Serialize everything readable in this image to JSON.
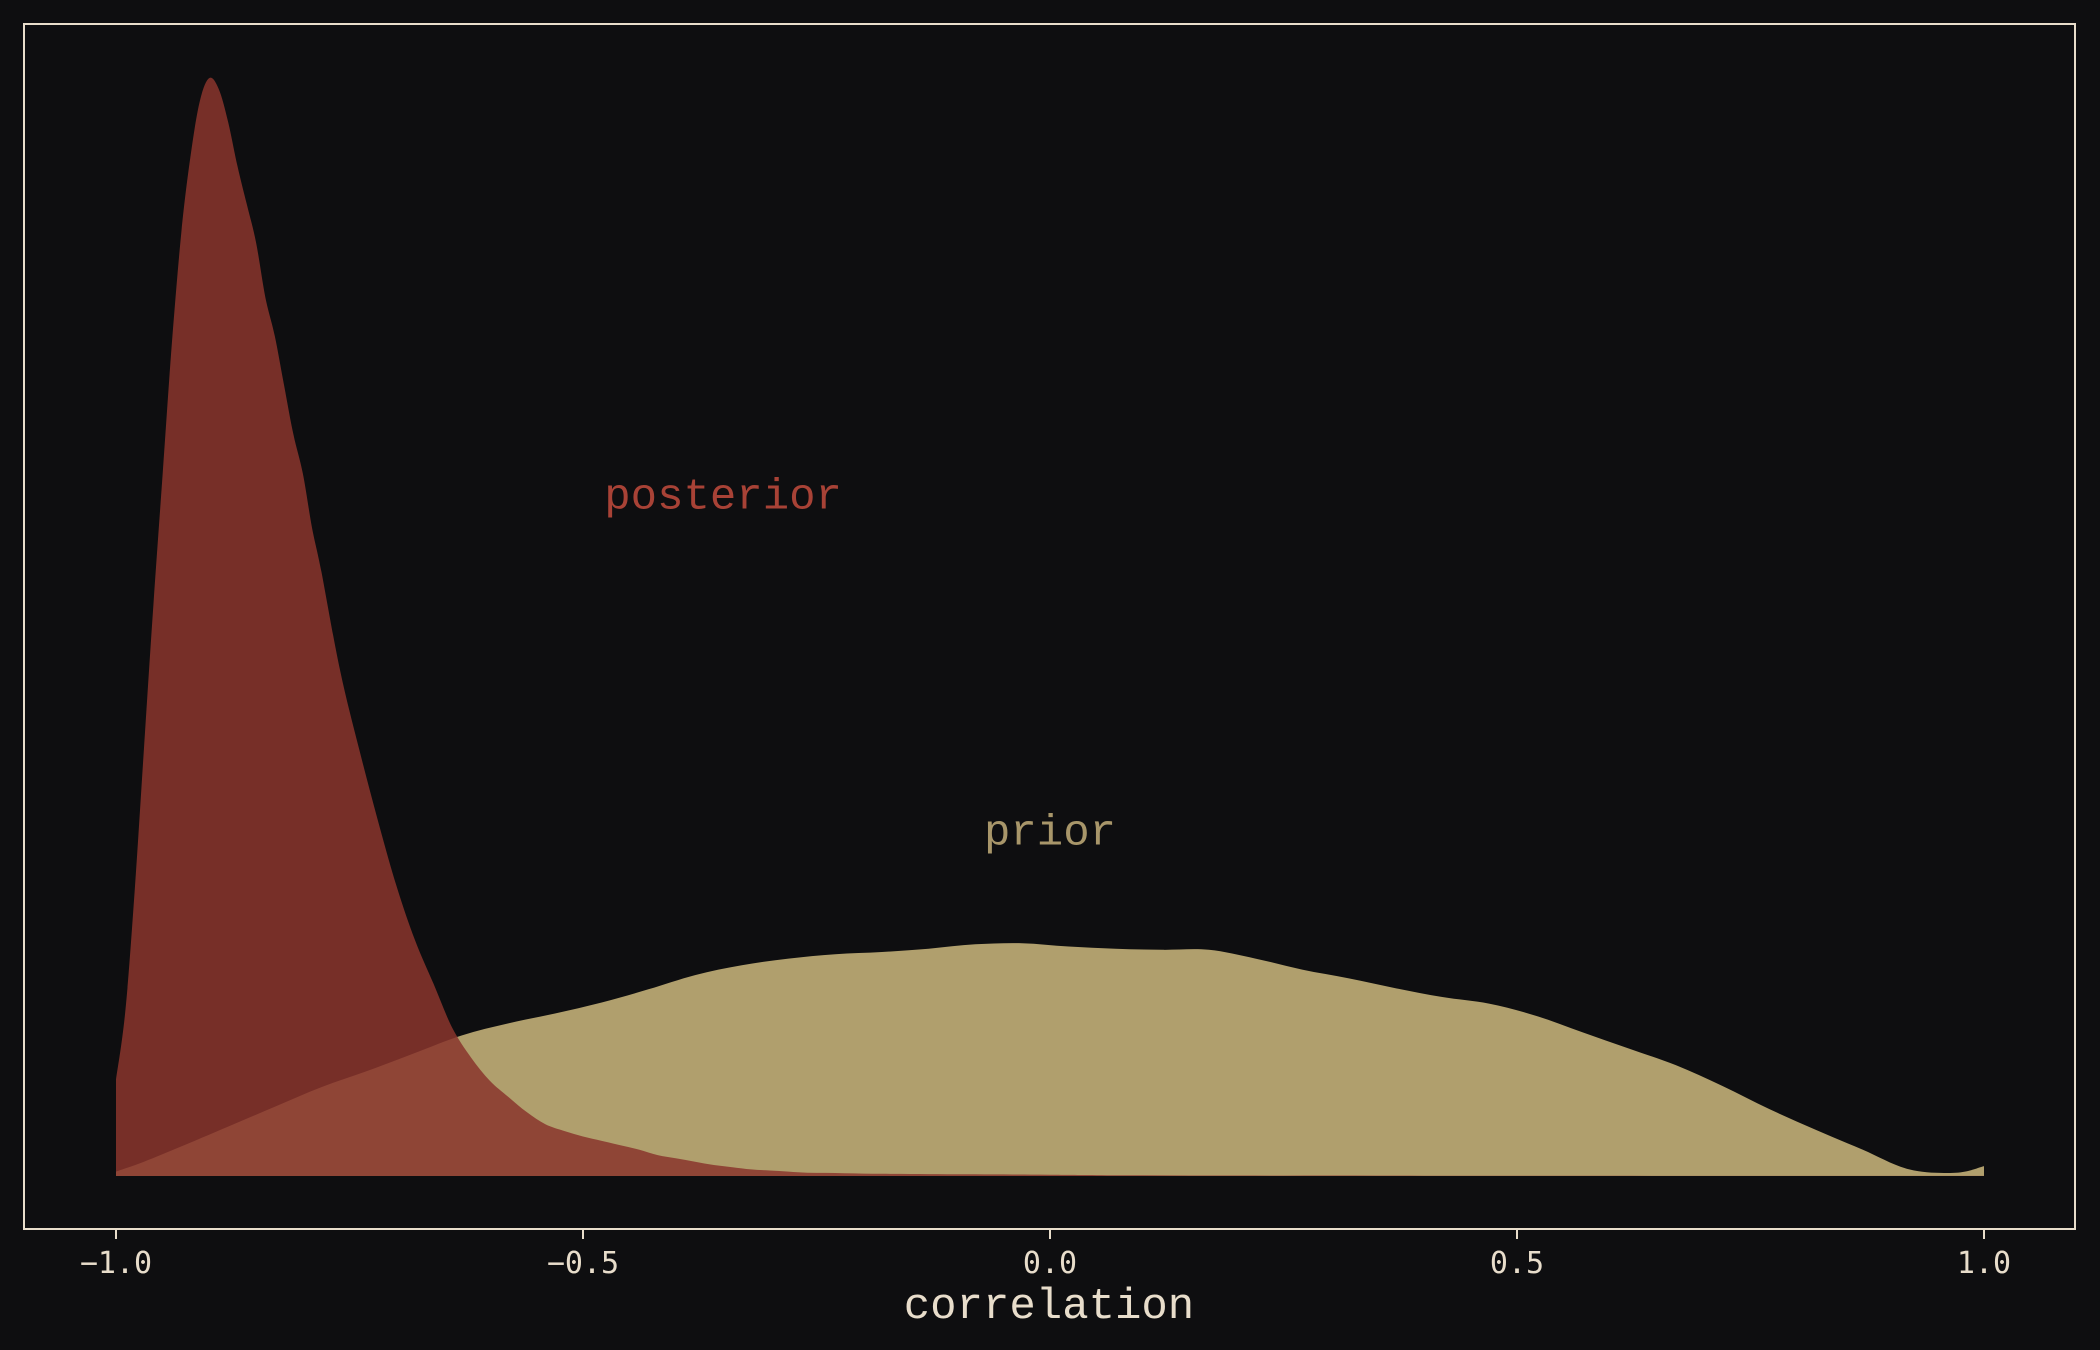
{
  "chart_data": {
    "type": "area",
    "title": "",
    "xlabel": "correlation",
    "ylabel": "",
    "xlim": [
      -1.0,
      1.0
    ],
    "ylim": [
      0,
      1.0
    ],
    "grid": false,
    "background": "#0e0e10",
    "frame_color": "#e8ddcb",
    "xticks": [
      {
        "value": -1.0,
        "label": "−1.0"
      },
      {
        "value": -0.5,
        "label": "−0.5"
      },
      {
        "value": 0.0,
        "label": "0.0"
      },
      {
        "value": 0.5,
        "label": "0.5"
      },
      {
        "value": 1.0,
        "label": "1.0"
      }
    ],
    "series": [
      {
        "name": "prior",
        "color": "#b09f6d",
        "label_color": "#a8966a",
        "label_pos": [
          0.0,
          0.302
        ],
        "x": [
          -1.0,
          -0.97,
          -0.93,
          -0.88,
          -0.83,
          -0.78,
          -0.73,
          -0.68,
          -0.63,
          -0.58,
          -0.53,
          -0.48,
          -0.43,
          -0.38,
          -0.33,
          -0.28,
          -0.23,
          -0.18,
          -0.13,
          -0.08,
          -0.03,
          0.02,
          0.07,
          0.12,
          0.17,
          0.22,
          0.27,
          0.32,
          0.37,
          0.42,
          0.47,
          0.52,
          0.57,
          0.62,
          0.67,
          0.72,
          0.77,
          0.82,
          0.87,
          0.92,
          0.97,
          1.0
        ],
        "y": [
          0.004,
          0.013,
          0.027,
          0.045,
          0.063,
          0.081,
          0.096,
          0.112,
          0.128,
          0.139,
          0.148,
          0.158,
          0.17,
          0.183,
          0.192,
          0.198,
          0.202,
          0.204,
          0.207,
          0.211,
          0.212,
          0.209,
          0.207,
          0.206,
          0.206,
          0.198,
          0.188,
          0.18,
          0.171,
          0.163,
          0.157,
          0.146,
          0.131,
          0.116,
          0.101,
          0.082,
          0.061,
          0.042,
          0.024,
          0.006,
          0.003,
          0.009
        ]
      },
      {
        "name": "posterior",
        "color": "#8a352d",
        "label_color": "#a84236",
        "label_pos": [
          -0.35,
          0.608
        ],
        "x": [
          -1.0,
          -0.99,
          -0.98,
          -0.97,
          -0.96,
          -0.95,
          -0.94,
          -0.93,
          -0.92,
          -0.91,
          -0.9,
          -0.89,
          -0.88,
          -0.87,
          -0.86,
          -0.85,
          -0.84,
          -0.83,
          -0.82,
          -0.81,
          -0.8,
          -0.79,
          -0.78,
          -0.76,
          -0.74,
          -0.72,
          -0.7,
          -0.68,
          -0.66,
          -0.64,
          -0.62,
          -0.6,
          -0.58,
          -0.56,
          -0.54,
          -0.52,
          -0.5,
          -0.48,
          -0.46,
          -0.44,
          -0.42,
          -0.4,
          -0.38,
          -0.36,
          -0.34,
          -0.32,
          -0.3,
          -0.28,
          -0.26,
          -0.24,
          -0.22,
          -0.2,
          -0.18,
          -0.16,
          -0.14,
          -0.12,
          -0.1,
          -0.08,
          -0.06,
          -0.04,
          -0.02,
          0.0,
          0.02,
          0.05,
          0.1,
          0.15,
          0.2,
          0.25,
          0.3,
          0.35,
          0.4,
          0.45,
          0.5,
          0.55,
          0.6,
          0.65,
          0.7,
          0.8,
          0.9,
          1.0
        ],
        "y": [
          0.088,
          0.15,
          0.26,
          0.39,
          0.52,
          0.64,
          0.76,
          0.86,
          0.93,
          0.98,
          1.0,
          0.99,
          0.96,
          0.92,
          0.885,
          0.85,
          0.8,
          0.765,
          0.72,
          0.675,
          0.64,
          0.59,
          0.55,
          0.46,
          0.39,
          0.325,
          0.265,
          0.215,
          0.175,
          0.135,
          0.108,
          0.087,
          0.072,
          0.058,
          0.047,
          0.041,
          0.036,
          0.032,
          0.028,
          0.024,
          0.019,
          0.016,
          0.013,
          0.01,
          0.008,
          0.006,
          0.005,
          0.004,
          0.003,
          0.0028,
          0.0025,
          0.0022,
          0.002,
          0.0019,
          0.0018,
          0.0017,
          0.0016,
          0.0016,
          0.0015,
          0.0014,
          0.0013,
          0.0012,
          0.001,
          0.0008,
          0.0006,
          0.0005,
          0.0005,
          0.0004,
          0.0005,
          0.0004,
          0.0003,
          0.0003,
          0.0002,
          0.0002,
          0.0002,
          0.0001,
          0.0001,
          0.0001,
          0.0001,
          0.0001
        ]
      }
    ]
  }
}
